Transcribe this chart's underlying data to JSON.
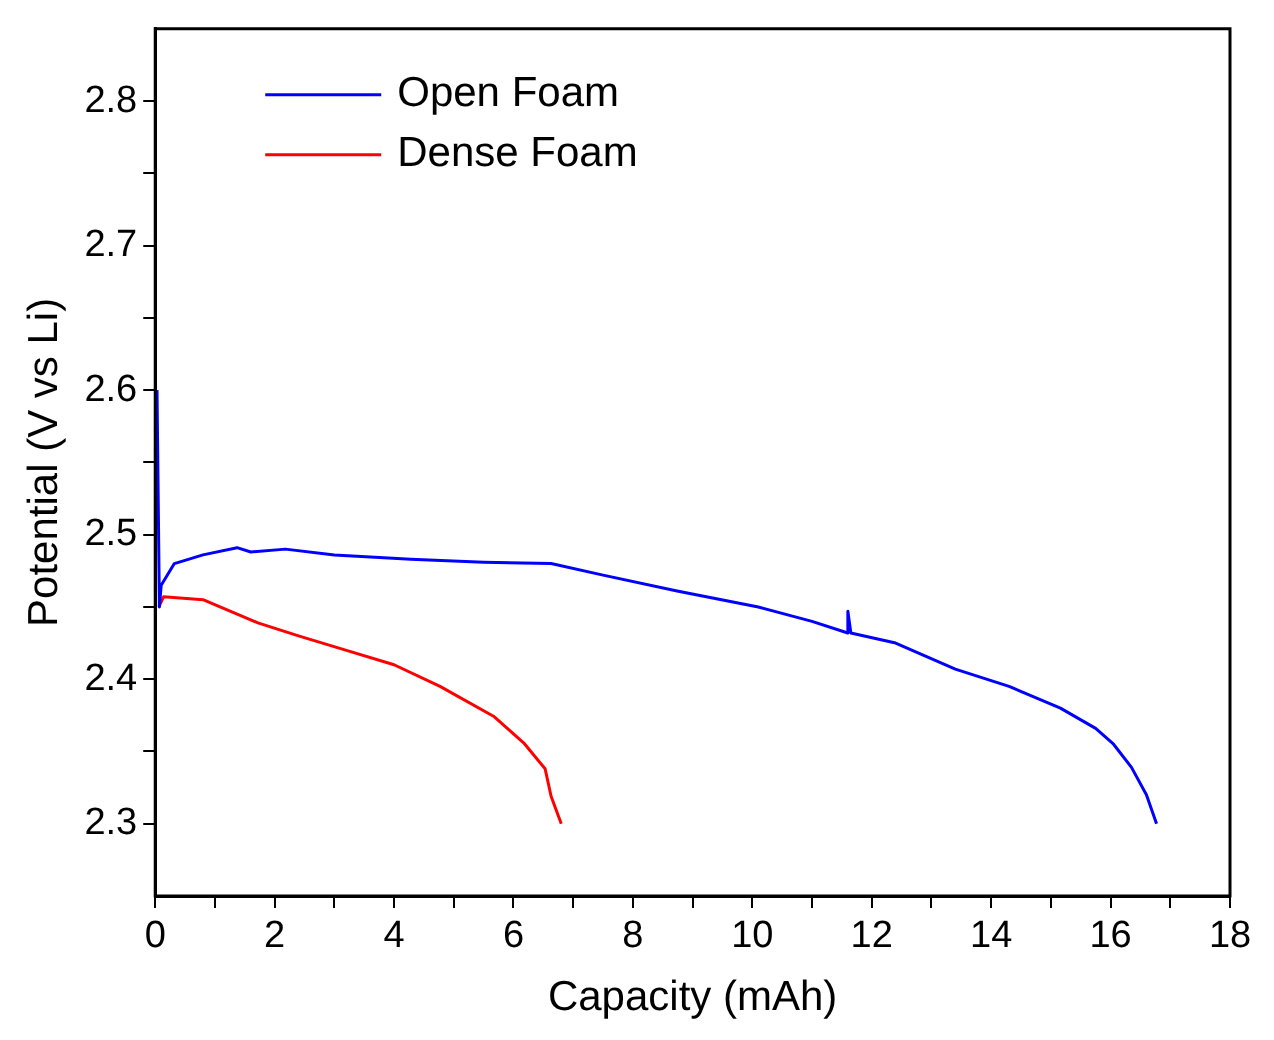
{
  "chart_data": {
    "type": "line",
    "xlabel": "Capacity (mAh)",
    "ylabel": "Potential (V vs Li)",
    "xlim": [
      0,
      18
    ],
    "xticks": [
      0,
      {
        "value": 1,
        "label": null
      },
      2,
      {
        "value": 3,
        "label": null
      },
      4,
      {
        "value": 5,
        "label": null
      },
      6,
      {
        "value": 7,
        "label": null
      },
      8,
      {
        "value": 9,
        "label": null
      },
      10,
      {
        "value": 11,
        "label": null
      },
      12,
      {
        "value": 13,
        "label": null
      },
      14,
      {
        "value": 15,
        "label": null
      },
      16,
      {
        "value": 17,
        "label": null
      },
      18
    ],
    "ylim": [
      2.25,
      2.85
    ],
    "yticks": [
      2.3,
      {
        "value": 2.35,
        "label": null
      },
      2.4,
      {
        "value": 2.45,
        "label": null
      },
      2.5,
      {
        "value": 2.55,
        "label": null
      },
      2.6,
      {
        "value": 2.65,
        "label": null
      },
      2.7,
      {
        "value": 2.75,
        "label": null
      },
      2.8
    ],
    "legend": "top left",
    "grid": false,
    "marker": "none",
    "line_style": "solid",
    "series": [
      {
        "name": "Open Foam",
        "color": "#0000ff",
        "x": [
          0.03,
          0.07,
          0.1,
          0.32,
          0.8,
          1.37,
          1.6,
          2.18,
          3,
          4.28,
          5.5,
          6.63,
          7.5,
          8.74,
          10.1,
          11.0,
          11.6,
          11.6,
          11.65,
          12.4,
          13.4,
          14.3,
          15.16,
          15.75,
          16.05,
          16.35,
          16.6,
          16.77
        ],
        "values": [
          2.6,
          2.45,
          2.465,
          2.48,
          2.486,
          2.491,
          2.488,
          2.49,
          2.486,
          2.483,
          2.481,
          2.48,
          2.472,
          2.461,
          2.45,
          2.44,
          2.432,
          2.447,
          2.432,
          2.425,
          2.407,
          2.395,
          2.38,
          2.366,
          2.355,
          2.339,
          2.32,
          2.3
        ]
      },
      {
        "name": "Dense Foam",
        "color": "#ff0000",
        "x": [
          0.06,
          0.14,
          0.8,
          1.72,
          2.4,
          3.12,
          4.0,
          4.77,
          5.68,
          6.17,
          6.53,
          6.63,
          6.8
        ],
        "values": [
          2.45,
          2.457,
          2.455,
          2.439,
          2.43,
          2.421,
          2.41,
          2.395,
          2.374,
          2.356,
          2.338,
          2.319,
          2.3
        ]
      }
    ]
  }
}
